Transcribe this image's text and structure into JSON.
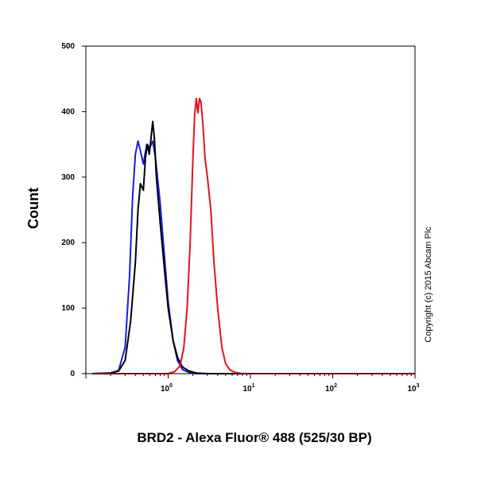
{
  "chart_data": {
    "type": "line",
    "xlabel": "BRD2 - Alexa Fluor® 488 (525/30 BP)",
    "ylabel": "Count",
    "x_scale": "log",
    "xlim": [
      0.1,
      1000
    ],
    "ylim": [
      0,
      500
    ],
    "y_ticks": [
      "0",
      "100",
      "200",
      "300",
      "400",
      "500"
    ],
    "x_ticks": [
      {
        "base": "10",
        "exp": "0",
        "value": 1
      },
      {
        "base": "10",
        "exp": "1",
        "value": 10
      },
      {
        "base": "10",
        "exp": "2",
        "value": 100
      },
      {
        "base": "10",
        "exp": "3",
        "value": 1000
      }
    ],
    "grid": false,
    "legend": "none",
    "annotation": "Copyright (c) 2015 Abcam Plc",
    "series": [
      {
        "color": "#1a1adc",
        "points": [
          [
            0.12,
            0
          ],
          [
            0.2,
            1
          ],
          [
            0.25,
            5
          ],
          [
            0.3,
            40
          ],
          [
            0.34,
            150
          ],
          [
            0.37,
            270
          ],
          [
            0.4,
            335
          ],
          [
            0.43,
            355
          ],
          [
            0.46,
            340
          ],
          [
            0.5,
            320
          ],
          [
            0.55,
            350
          ],
          [
            0.6,
            345
          ],
          [
            0.65,
            355
          ],
          [
            0.7,
            330
          ],
          [
            0.8,
            260
          ],
          [
            0.9,
            180
          ],
          [
            1.0,
            110
          ],
          [
            1.15,
            50
          ],
          [
            1.3,
            20
          ],
          [
            1.5,
            6
          ],
          [
            1.8,
            2
          ],
          [
            2.2,
            0
          ],
          [
            1000,
            0
          ]
        ]
      },
      {
        "color": "#000000",
        "points": [
          [
            0.12,
            0
          ],
          [
            0.2,
            1
          ],
          [
            0.25,
            4
          ],
          [
            0.3,
            20
          ],
          [
            0.35,
            80
          ],
          [
            0.4,
            170
          ],
          [
            0.43,
            250
          ],
          [
            0.46,
            290
          ],
          [
            0.5,
            280
          ],
          [
            0.53,
            330
          ],
          [
            0.56,
            350
          ],
          [
            0.59,
            335
          ],
          [
            0.62,
            360
          ],
          [
            0.65,
            385
          ],
          [
            0.68,
            360
          ],
          [
            0.72,
            300
          ],
          [
            0.8,
            230
          ],
          [
            0.9,
            160
          ],
          [
            1.0,
            100
          ],
          [
            1.15,
            50
          ],
          [
            1.3,
            25
          ],
          [
            1.5,
            10
          ],
          [
            1.8,
            4
          ],
          [
            2.2,
            1
          ],
          [
            3,
            0
          ],
          [
            1000,
            0
          ]
        ]
      },
      {
        "color": "#e0141e",
        "points": [
          [
            0.12,
            0
          ],
          [
            1.0,
            0
          ],
          [
            1.2,
            3
          ],
          [
            1.4,
            12
          ],
          [
            1.55,
            40
          ],
          [
            1.7,
            100
          ],
          [
            1.85,
            200
          ],
          [
            2.0,
            330
          ],
          [
            2.1,
            395
          ],
          [
            2.2,
            420
          ],
          [
            2.3,
            398
          ],
          [
            2.4,
            420
          ],
          [
            2.5,
            415
          ],
          [
            2.65,
            380
          ],
          [
            2.8,
            330
          ],
          [
            3.0,
            300
          ],
          [
            3.3,
            250
          ],
          [
            3.6,
            170
          ],
          [
            4.0,
            100
          ],
          [
            4.5,
            40
          ],
          [
            5.0,
            15
          ],
          [
            5.6,
            6
          ],
          [
            6.5,
            2
          ],
          [
            8,
            0
          ],
          [
            1000,
            0
          ]
        ]
      }
    ]
  }
}
